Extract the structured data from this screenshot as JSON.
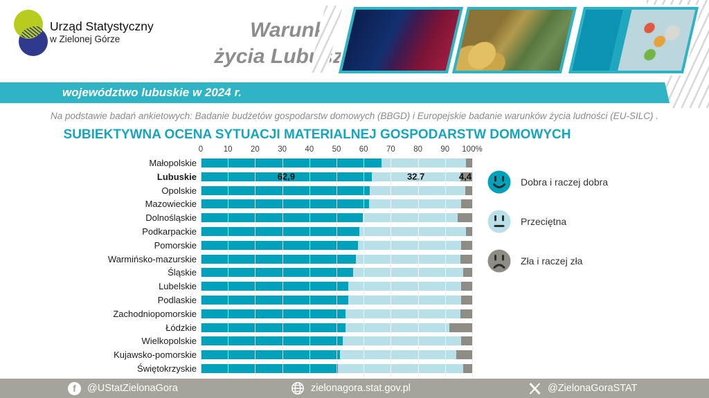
{
  "header": {
    "logo": {
      "line1": "Urząd Statystyczny",
      "line2": "w Zielonej Górze"
    },
    "title_line1": "Warunki",
    "title_line2": "życia Lubuszan",
    "photos": [
      "cinema-interior",
      "coins-and-banknotes",
      "fridge-with-food"
    ]
  },
  "banner": {
    "text": "województwo lubuskie w 2024 r.",
    "color": "#2eb4c4"
  },
  "source_note": "Na podstawie badań ankietowych: Badanie budżetów gospodarstw domowych (BBGD) i Europejskie badanie warunków życia ludności (EU-SILC) .",
  "chart_title": "SUBIEKTYWNA OCENA SYTUACJI MATERIALNEJ GOSPODARSTW DOMOWYCH",
  "chart_data": {
    "type": "bar",
    "orientation": "horizontal",
    "stacked": true,
    "title": "SUBIEKTYWNA OCENA SYTUACJI MATERIALNEJ GOSPODARSTW DOMOWYCH",
    "x_range": [
      0,
      100
    ],
    "x_ticks": [
      "0",
      "10",
      "20",
      "30",
      "40",
      "50",
      "60",
      "70",
      "80",
      "90",
      "100%"
    ],
    "grid": true,
    "legend_position": "right",
    "categories": [
      "Małopolskie",
      "Lubuskie",
      "Opolskie",
      "Mazowieckie",
      "Dolnośląskie",
      "Podkarpackie",
      "Pomorskie",
      "Warmińsko-mazurskie",
      "Śląskie",
      "Lubelskie",
      "Podlaskie",
      "Zachodniopomorskie",
      "Łódzkie",
      "Wielkopolskie",
      "Kujawsko-pomorskie",
      "Świętokrzyskie"
    ],
    "highlight_category": "Lubuskie",
    "series": [
      {
        "name": "Dobra i raczej dobra",
        "color": "#00a2bb",
        "values": [
          66.6,
          62.9,
          62.3,
          61.9,
          59.6,
          58.4,
          57.9,
          57.1,
          56.0,
          54.3,
          54.3,
          53.4,
          53.3,
          52.4,
          51.2,
          50.5
        ]
      },
      {
        "name": "Przeciętna",
        "color": "#b9dfe9",
        "values": [
          31.2,
          32.7,
          35.2,
          34.1,
          35.1,
          39.4,
          38.1,
          38.6,
          40.7,
          41.7,
          41.5,
          42.2,
          38.3,
          43.4,
          43.0,
          46.3
        ]
      },
      {
        "name": "Zła i raczej zła",
        "color": "#8f8c85",
        "values": [
          2.2,
          4.4,
          2.5,
          4.0,
          5.3,
          2.2,
          4.0,
          4.3,
          3.3,
          4.0,
          4.2,
          4.4,
          8.4,
          4.2,
          5.8,
          3.2
        ]
      }
    ],
    "data_labels": {
      "category": "Lubuskie",
      "values": [
        "62,9",
        "32,7",
        "4,4"
      ]
    }
  },
  "legend": {
    "items": [
      {
        "label": "Dobra i raczej dobra",
        "color": "#00a2bb",
        "mood": "happy"
      },
      {
        "label": "Przeciętna",
        "color": "#b9dfe9",
        "mood": "neutral"
      },
      {
        "label": "Zła i raczej zła",
        "color": "#8f8c85",
        "mood": "sad"
      }
    ]
  },
  "footer": {
    "facebook_handle": "@UStatZielonaGora",
    "website": "zielonagora.stat.gov.pl",
    "x_handle": "@ZielonaGoraSTAT"
  },
  "colors": {
    "accent_teal": "#00a2bb",
    "light_blue": "#b9dfe9",
    "bad_gray": "#8f8c85",
    "banner_teal": "#2eb4c4",
    "title_gray": "#8d8d8d",
    "chart_title_teal": "#17a4bc",
    "footer_gray": "#a6a39c",
    "logo_green": "#b7cc1e",
    "logo_navy": "#2f3a8f"
  }
}
